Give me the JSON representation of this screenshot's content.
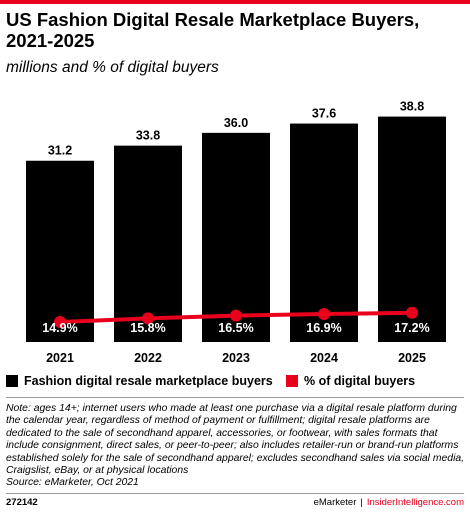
{
  "chart_data": {
    "type": "bar",
    "title": "US Fashion Digital Resale Marketplace Buyers, 2021-2025",
    "subtitle": "millions and % of digital buyers",
    "categories": [
      "2021",
      "2022",
      "2023",
      "2024",
      "2025"
    ],
    "series": [
      {
        "name": "Fashion digital resale marketplace buyers",
        "type": "bar",
        "values": [
          31.2,
          33.8,
          36.0,
          37.6,
          38.8
        ],
        "labels": [
          "31.2",
          "33.8",
          "36.0",
          "37.6",
          "38.8"
        ],
        "color": "#000000"
      },
      {
        "name": "% of digital buyers",
        "type": "line",
        "values": [
          14.9,
          15.8,
          16.5,
          16.9,
          17.2
        ],
        "labels": [
          "14.9%",
          "15.8%",
          "16.5%",
          "16.9%",
          "17.2%"
        ],
        "color": "#e8001c"
      }
    ],
    "ylim": [
      0,
      42
    ],
    "grid": false,
    "legend_position": "bottom-left"
  },
  "colors": {
    "accent": "#e8001c",
    "bar": "#000000"
  },
  "note": "Note: ages 14+; internet users who made at least one purchase via a digital resale platform during the calendar year, regardless of method of payment or fulfillment; digital resale platforms are dedicated to the sale of secondhand apparel, accessories, or footwear, with sales formats that include consignment, direct sales, or peer-to-peer; also includes retailer-run or brand-run platforms established solely for the sale of secondhand apparel; excludes secondhand sales via social media, Craigslist, eBay, or at physical locations",
  "source": "Source: eMarketer, Oct 2021",
  "footer": {
    "chart_id": "272142",
    "brand1": "eMarketer",
    "brand2": "InsiderIntelligence.com"
  }
}
